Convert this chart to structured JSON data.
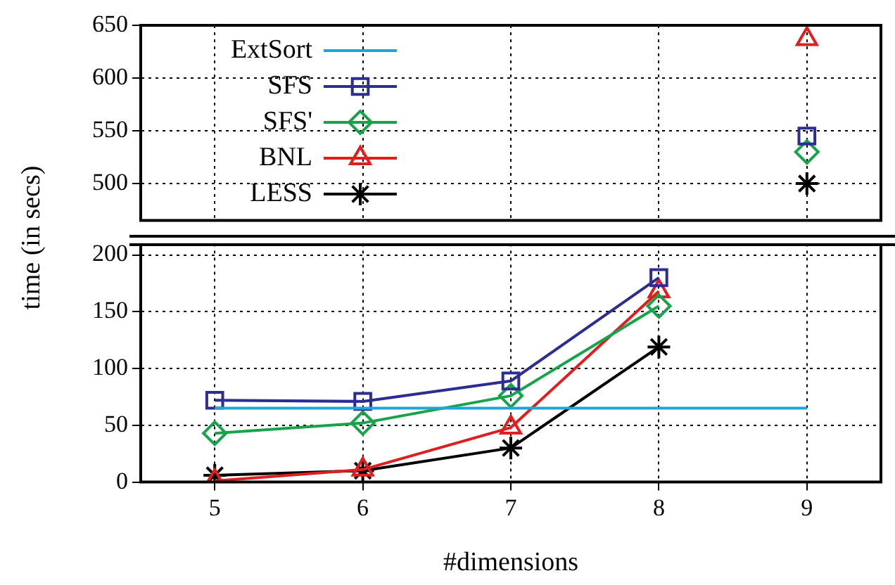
{
  "chart_data": [
    {
      "type": "line",
      "ylabel": "time (in secs)",
      "x": [
        9
      ],
      "xlim": [
        4.5,
        9.5
      ],
      "xticks": [
        5,
        6,
        7,
        8,
        9
      ],
      "ylim": [
        465,
        650
      ],
      "yticks": [
        500,
        550,
        600,
        650
      ],
      "grid": true,
      "legend": "top left",
      "tick_labels": "y",
      "series": [
        {
          "name": "ExtSort",
          "color": "#1ba7db",
          "marker": "none",
          "values": [
            null
          ]
        },
        {
          "name": "SFS",
          "color": "#2b2d91",
          "marker": "square",
          "values": [
            545
          ]
        },
        {
          "name": "SFS'",
          "color": "#16a34a",
          "marker": "diamond",
          "values": [
            530
          ]
        },
        {
          "name": "BNL",
          "color": "#e11d1d",
          "marker": "triangle",
          "values": [
            637
          ]
        },
        {
          "name": "LESS",
          "color": "#000000",
          "marker": "cross",
          "values": [
            500
          ]
        }
      ]
    },
    {
      "type": "line",
      "xlabel": "#dimensions",
      "x": [
        5,
        6,
        7,
        8,
        9
      ],
      "xlim": [
        4.5,
        9.5
      ],
      "xticks": [
        5,
        6,
        7,
        8,
        9
      ],
      "ylim": [
        0,
        210
      ],
      "yticks": [
        0,
        50,
        100,
        150,
        200
      ],
      "grid": true,
      "series": [
        {
          "color": "#1ba7db",
          "marker": "none",
          "values": [
            65,
            65,
            65,
            65,
            65
          ]
        },
        {
          "color": "#2b2d91",
          "marker": "square",
          "values": [
            72,
            71,
            89,
            180,
            null
          ]
        },
        {
          "color": "#16a34a",
          "marker": "diamond",
          "values": [
            43,
            52,
            76,
            155,
            null
          ]
        },
        {
          "color": "#e11d1d",
          "marker": "triangle",
          "values": [
            1,
            11,
            48,
            168,
            null
          ]
        },
        {
          "color": "#000000",
          "marker": "cross",
          "values": [
            6,
            10,
            30,
            119,
            null
          ]
        }
      ]
    }
  ]
}
